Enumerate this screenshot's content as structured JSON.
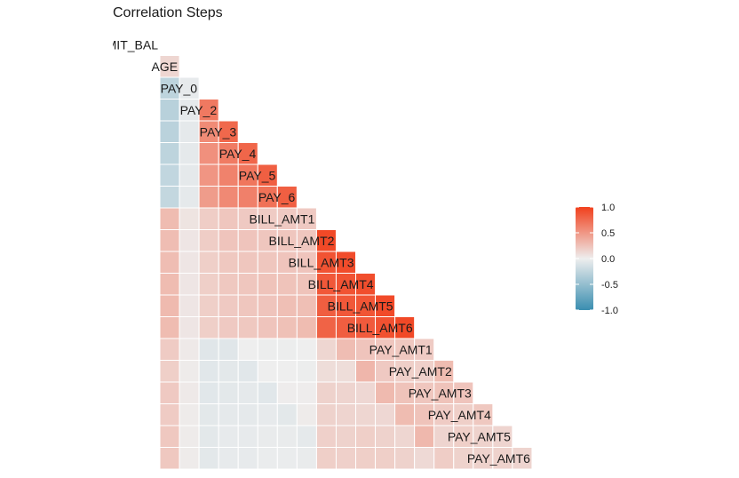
{
  "chart_data": {
    "type": "heatmap",
    "title": "Correlation Steps",
    "variables": [
      "LIMIT_BAL",
      "AGE",
      "PAY_0",
      "PAY_2",
      "PAY_3",
      "PAY_4",
      "PAY_5",
      "PAY_6",
      "BILL_AMT1",
      "BILL_AMT2",
      "BILL_AMT3",
      "BILL_AMT4",
      "BILL_AMT5",
      "BILL_AMT6",
      "PAY_AMT1",
      "PAY_AMT2",
      "PAY_AMT3",
      "PAY_AMT4",
      "PAY_AMT5",
      "PAY_AMT6"
    ],
    "matrix_layout": "lower-triangle",
    "correlations": [
      [
        1
      ],
      [
        0.14,
        1
      ],
      [
        -0.27,
        -0.04,
        1
      ],
      [
        -0.3,
        -0.05,
        0.67,
        1
      ],
      [
        -0.29,
        -0.05,
        0.57,
        0.77,
        1
      ],
      [
        -0.27,
        -0.05,
        0.54,
        0.66,
        0.78,
        1
      ],
      [
        -0.25,
        -0.05,
        0.51,
        0.62,
        0.69,
        0.82,
        1
      ],
      [
        -0.24,
        -0.05,
        0.47,
        0.58,
        0.63,
        0.72,
        0.82,
        1
      ],
      [
        0.29,
        0.06,
        0.19,
        0.23,
        0.21,
        0.2,
        0.21,
        0.21,
        1
      ],
      [
        0.28,
        0.05,
        0.19,
        0.24,
        0.24,
        0.23,
        0.23,
        0.23,
        0.95,
        1
      ],
      [
        0.28,
        0.05,
        0.18,
        0.22,
        0.23,
        0.23,
        0.24,
        0.24,
        0.89,
        0.93,
        1
      ],
      [
        0.29,
        0.05,
        0.18,
        0.22,
        0.23,
        0.25,
        0.25,
        0.25,
        0.86,
        0.89,
        0.92,
        1
      ],
      [
        0.3,
        0.05,
        0.18,
        0.21,
        0.23,
        0.24,
        0.27,
        0.27,
        0.83,
        0.86,
        0.88,
        0.94,
        1
      ],
      [
        0.29,
        0.05,
        0.18,
        0.21,
        0.22,
        0.24,
        0.26,
        0.29,
        0.8,
        0.83,
        0.85,
        0.9,
        0.95,
        1
      ],
      [
        0.2,
        0.03,
        -0.08,
        -0.08,
        0.0,
        -0.01,
        -0.01,
        -0.0,
        0.14,
        0.28,
        0.24,
        0.23,
        0.22,
        0.2,
        1
      ],
      [
        0.18,
        0.02,
        -0.07,
        -0.06,
        -0.07,
        -0.0,
        -0.0,
        -0.01,
        0.1,
        0.1,
        0.32,
        0.21,
        0.18,
        0.17,
        0.29,
        1
      ],
      [
        0.21,
        0.03,
        -0.07,
        -0.06,
        -0.05,
        -0.07,
        0.01,
        0.01,
        0.16,
        0.15,
        0.13,
        0.3,
        0.25,
        0.23,
        0.25,
        0.24,
        1
      ],
      [
        0.2,
        0.02,
        -0.06,
        -0.05,
        -0.05,
        -0.04,
        -0.06,
        0.02,
        0.16,
        0.15,
        0.14,
        0.13,
        0.29,
        0.25,
        0.2,
        0.18,
        0.22,
        1
      ],
      [
        0.22,
        0.02,
        -0.06,
        -0.04,
        -0.04,
        -0.03,
        -0.03,
        -0.05,
        0.17,
        0.16,
        0.18,
        0.16,
        0.14,
        0.31,
        0.15,
        0.18,
        0.16,
        0.15,
        1
      ],
      [
        0.22,
        0.02,
        -0.06,
        -0.04,
        -0.04,
        -0.02,
        -0.02,
        -0.03,
        0.18,
        0.17,
        0.18,
        0.18,
        0.16,
        0.12,
        0.19,
        0.16,
        0.16,
        0.16,
        0.15,
        1
      ]
    ],
    "color_scale": {
      "low": "#3a8eb0",
      "mid": "#eeeeee",
      "high": "#f1401c",
      "limits": [
        -1,
        1
      ]
    },
    "legend": {
      "position": "right",
      "ticks": [
        "1.0",
        "0.5",
        "0.0",
        "-0.5",
        "-1.0"
      ],
      "tick_values": [
        1,
        0.5,
        0,
        -0.5,
        -1
      ]
    },
    "grid": false
  }
}
